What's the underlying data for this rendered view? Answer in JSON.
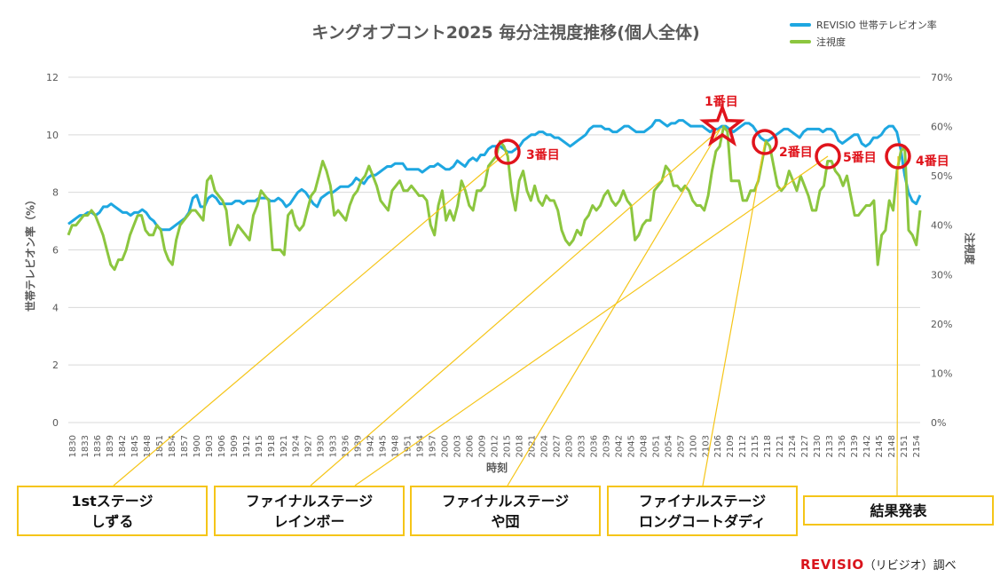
{
  "chart_data": {
    "type": "line",
    "title": "キングオブコント2025 毎分注視度推移(個人全体)",
    "xlabel": "時刻",
    "ylabel_left": "世帯テレビオン率（%）",
    "ylabel_right": "注視度",
    "ylim_left": [
      0,
      12
    ],
    "ylim_right": [
      0,
      70
    ],
    "yticks_left": [
      "0",
      "2",
      "4",
      "6",
      "8",
      "10",
      "12"
    ],
    "yticks_right": [
      "0%",
      "10%",
      "20%",
      "30%",
      "40%",
      "50%",
      "60%",
      "70%"
    ],
    "x_tick_labels": [
      "1830",
      "1833",
      "1836",
      "1839",
      "1842",
      "1845",
      "1848",
      "1851",
      "1854",
      "1857",
      "1900",
      "1903",
      "1906",
      "1909",
      "1912",
      "1915",
      "1918",
      "1921",
      "1924",
      "1927",
      "1930",
      "1933",
      "1936",
      "1939",
      "1942",
      "1945",
      "1948",
      "1951",
      "1954",
      "1957",
      "2000",
      "2003",
      "2006",
      "2009",
      "2012",
      "2015",
      "2018",
      "2021",
      "2024",
      "2027",
      "2030",
      "2033",
      "2036",
      "2039",
      "2042",
      "2045",
      "2048",
      "2051",
      "2054",
      "2057",
      "2100",
      "2103",
      "2106",
      "2109",
      "2112",
      "2115",
      "2118",
      "2121",
      "2124",
      "2127",
      "2130",
      "2133",
      "2136",
      "2139",
      "2142",
      "2145",
      "2148",
      "2151",
      "2154"
    ],
    "series": [
      {
        "name": "REVISIO 世帯テレビオン率",
        "axis": "left",
        "color": "#1ea7e1",
        "values": [
          6.9,
          7.0,
          7.1,
          7.2,
          7.2,
          7.3,
          7.3,
          7.2,
          7.3,
          7.5,
          7.5,
          7.6,
          7.5,
          7.4,
          7.3,
          7.3,
          7.2,
          7.3,
          7.3,
          7.4,
          7.3,
          7.1,
          7.0,
          6.8,
          6.7,
          6.7,
          6.7,
          6.8,
          6.9,
          7.0,
          7.1,
          7.3,
          7.8,
          7.9,
          7.5,
          7.5,
          7.8,
          7.9,
          7.8,
          7.6,
          7.6,
          7.6,
          7.6,
          7.7,
          7.7,
          7.6,
          7.7,
          7.7,
          7.7,
          7.8,
          7.8,
          7.8,
          7.7,
          7.7,
          7.8,
          7.7,
          7.5,
          7.6,
          7.8,
          8.0,
          8.1,
          8.0,
          7.8,
          7.6,
          7.5,
          7.8,
          7.9,
          8.0,
          8.0,
          8.1,
          8.2,
          8.2,
          8.2,
          8.3,
          8.5,
          8.4,
          8.3,
          8.5,
          8.6,
          8.6,
          8.7,
          8.8,
          8.9,
          8.9,
          9.0,
          9.0,
          9.0,
          8.8,
          8.8,
          8.8,
          8.8,
          8.7,
          8.8,
          8.9,
          8.9,
          9.0,
          8.9,
          8.8,
          8.8,
          8.9,
          9.1,
          9.0,
          8.9,
          9.1,
          9.2,
          9.1,
          9.3,
          9.3,
          9.5,
          9.6,
          9.6,
          9.6,
          9.5,
          9.4,
          9.4,
          9.5,
          9.6,
          9.8,
          9.9,
          10.0,
          10.0,
          10.1,
          10.1,
          10.0,
          10.0,
          9.9,
          9.9,
          9.8,
          9.7,
          9.6,
          9.7,
          9.8,
          9.9,
          10.0,
          10.2,
          10.3,
          10.3,
          10.3,
          10.2,
          10.2,
          10.1,
          10.1,
          10.2,
          10.3,
          10.3,
          10.2,
          10.1,
          10.1,
          10.1,
          10.2,
          10.3,
          10.5,
          10.5,
          10.4,
          10.3,
          10.4,
          10.4,
          10.5,
          10.5,
          10.4,
          10.3,
          10.3,
          10.3,
          10.3,
          10.2,
          10.1,
          10.2,
          10.2,
          10.3,
          10.3,
          10.2,
          10.1,
          10.2,
          10.3,
          10.4,
          10.4,
          10.3,
          10.1,
          9.9,
          9.8,
          9.8,
          9.9,
          10.0,
          10.1,
          10.2,
          10.2,
          10.1,
          10.0,
          9.9,
          10.1,
          10.2,
          10.2,
          10.2,
          10.2,
          10.1,
          10.2,
          10.2,
          10.1,
          9.8,
          9.7,
          9.8,
          9.9,
          10.0,
          10.0,
          9.7,
          9.6,
          9.7,
          9.9,
          9.9,
          10.0,
          10.2,
          10.3,
          10.3,
          10.1,
          9.5,
          8.6,
          8.0,
          7.7,
          7.6,
          7.9
        ]
      },
      {
        "name": "注視度",
        "axis": "right",
        "color": "#8cc63f",
        "values": [
          38,
          40,
          40,
          41,
          42,
          42,
          43,
          42,
          40,
          38,
          35,
          32,
          31,
          33,
          33,
          35,
          38,
          40,
          42,
          42,
          39,
          38,
          38,
          40,
          39,
          35,
          33,
          32,
          37,
          40,
          41,
          42,
          43,
          43,
          42,
          41,
          49,
          50,
          47,
          46,
          45,
          43,
          36,
          38,
          40,
          39,
          38,
          37,
          42,
          44,
          47,
          46,
          45,
          35,
          35,
          35,
          34,
          42,
          43,
          40,
          39,
          40,
          43,
          46,
          47,
          50,
          53,
          51,
          48,
          42,
          43,
          42,
          41,
          44,
          46,
          47,
          49,
          50,
          52,
          50,
          48,
          45,
          44,
          43,
          47,
          48,
          49,
          47,
          47,
          48,
          47,
          46,
          46,
          45,
          40,
          38,
          44,
          47,
          41,
          43,
          41,
          44,
          49,
          47,
          44,
          43,
          47,
          47,
          48,
          52,
          53,
          54,
          57,
          56,
          54,
          47,
          43,
          49,
          51,
          47,
          45,
          48,
          45,
          44,
          46,
          45,
          45,
          43,
          39,
          37,
          36,
          37,
          39,
          38,
          41,
          42,
          44,
          43,
          44,
          46,
          47,
          45,
          44,
          45,
          47,
          45,
          44,
          37,
          38,
          40,
          41,
          41,
          47,
          48,
          49,
          52,
          51,
          48,
          48,
          47,
          48,
          47,
          45,
          44,
          44,
          43,
          46,
          51,
          55,
          56,
          60,
          59,
          49,
          49,
          49,
          45,
          45,
          47,
          47,
          49,
          53,
          57,
          56,
          52,
          48,
          47,
          48,
          51,
          49,
          47,
          50,
          48,
          46,
          43,
          43,
          47,
          48,
          53,
          53,
          51,
          50,
          48,
          50,
          46,
          42,
          42,
          43,
          44,
          44,
          45,
          32,
          38,
          39,
          45,
          43,
          51,
          55,
          56,
          39,
          38,
          36,
          43
        ]
      }
    ],
    "annotations": [
      {
        "label": "1番目",
        "marker": "star"
      },
      {
        "label": "2番目",
        "marker": "circle"
      },
      {
        "label": "3番目",
        "marker": "circle"
      },
      {
        "label": "4番目",
        "marker": "circle"
      },
      {
        "label": "5番目",
        "marker": "circle"
      }
    ],
    "segments": [
      {
        "label": "1stステージ\nしずる"
      },
      {
        "label": "ファイナルステージ\nレインボー"
      },
      {
        "label": "ファイナルステージ\nや団"
      },
      {
        "label": "ファイナルステージ\nロングコートダディ"
      },
      {
        "label": "結果発表"
      }
    ]
  },
  "credit": {
    "brand": "REVISIO",
    "text": "（リビジオ）調べ"
  }
}
